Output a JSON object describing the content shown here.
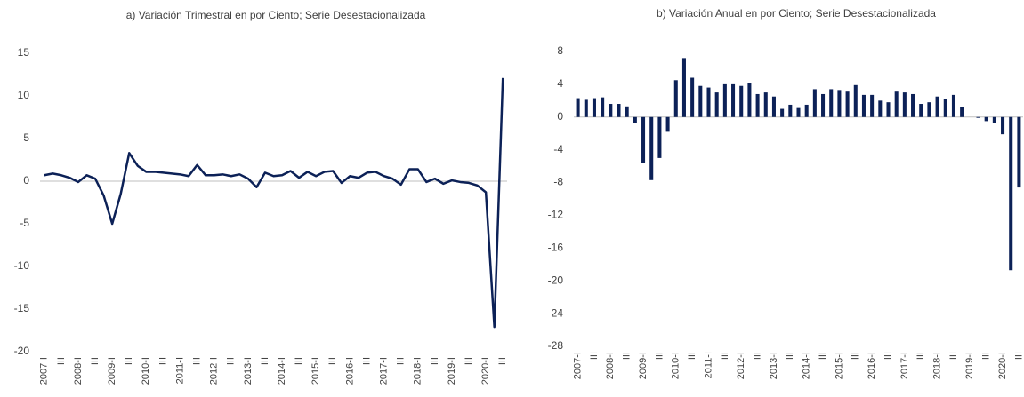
{
  "chart_data": [
    {
      "type": "line",
      "title": "a) Variación Trimestral en por Ciento; Serie Desestacionalizada",
      "categories": [
        "2007-I",
        null,
        "III",
        null,
        "2008-I",
        null,
        "III",
        null,
        "2009-I",
        null,
        "III",
        null,
        "2010-I",
        null,
        "III",
        null,
        "2011-I",
        null,
        "III",
        null,
        "2012-I",
        null,
        "III",
        null,
        "2013-I",
        null,
        "III",
        null,
        "2014-I",
        null,
        "III",
        null,
        "2015-I",
        null,
        "III",
        null,
        "2016-I",
        null,
        "III",
        null,
        "2017-I",
        null,
        "III",
        null,
        "2018-I",
        null,
        "III",
        null,
        "2019-I",
        null,
        "III",
        null,
        "2020-I",
        null,
        "III"
      ],
      "values": [
        0.7,
        0.9,
        0.7,
        0.4,
        -0.1,
        0.7,
        0.3,
        -1.7,
        -5.0,
        -1.5,
        3.3,
        1.8,
        1.1,
        1.1,
        1.0,
        0.9,
        0.8,
        0.6,
        1.9,
        0.7,
        0.7,
        0.8,
        0.6,
        0.8,
        0.3,
        -0.7,
        1.0,
        0.6,
        0.7,
        1.2,
        0.4,
        1.1,
        0.6,
        1.1,
        1.2,
        -0.2,
        0.6,
        0.4,
        1.0,
        1.1,
        0.6,
        0.3,
        -0.4,
        1.4,
        1.4,
        -0.1,
        0.3,
        -0.3,
        0.1,
        -0.1,
        -0.2,
        -0.5,
        -1.3,
        -17.1,
        12.1
      ],
      "color": "#0c2157",
      "ylim": [
        -20,
        15
      ],
      "yticks": [
        -20,
        -15,
        -10,
        -5,
        0,
        5,
        10,
        15
      ]
    },
    {
      "type": "bar",
      "title": "b) Variación Anual en por Ciento; Serie Desestacionalizada",
      "categories": [
        "2007-I",
        null,
        "III",
        null,
        "2008-I",
        null,
        "III",
        null,
        "2009-I",
        null,
        "III",
        null,
        "2010-I",
        null,
        "III",
        null,
        "2011-I",
        null,
        "III",
        null,
        "2012-I",
        null,
        "III",
        null,
        "2013-I",
        null,
        "III",
        null,
        "2014-I",
        null,
        "III",
        null,
        "2015-I",
        null,
        "III",
        null,
        "2016-I",
        null,
        "III",
        null,
        "2017-I",
        null,
        "III",
        null,
        "2018-I",
        null,
        "III",
        null,
        "2019-I",
        null,
        "III",
        null,
        "2020-I",
        null,
        "III"
      ],
      "values": [
        2.3,
        2.1,
        2.3,
        2.4,
        1.6,
        1.6,
        1.3,
        -0.7,
        -5.6,
        -7.7,
        -5.0,
        -1.8,
        4.5,
        7.2,
        4.8,
        3.8,
        3.6,
        3.0,
        4.0,
        4.0,
        3.8,
        4.1,
        2.8,
        3.0,
        2.5,
        1.0,
        1.5,
        1.1,
        1.5,
        3.4,
        2.8,
        3.4,
        3.3,
        3.1,
        3.9,
        2.7,
        2.7,
        2.0,
        1.8,
        3.1,
        3.0,
        2.8,
        1.6,
        1.8,
        2.5,
        2.2,
        2.7,
        1.2,
        0.0,
        -0.1,
        -0.5,
        -0.7,
        -2.1,
        -18.7,
        -8.6
      ],
      "color": "#0c2157",
      "ylim": [
        -28,
        8
      ],
      "yticks": [
        -28,
        -24,
        -20,
        -16,
        -12,
        -8,
        -4,
        0,
        4,
        8
      ]
    }
  ]
}
